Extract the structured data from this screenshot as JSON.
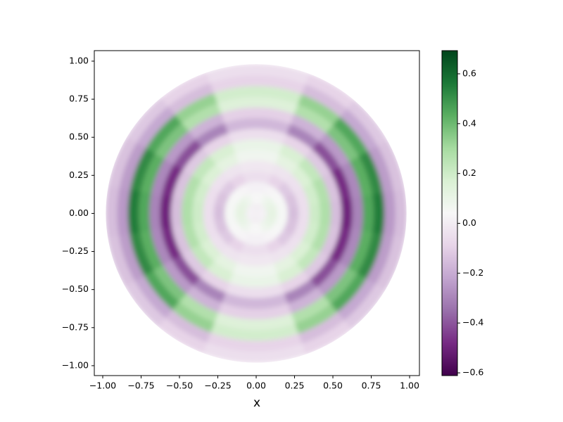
{
  "chart_data": {
    "type": "heatmap",
    "xlabel": "x",
    "xlim": [
      -1.055,
      1.064
    ],
    "ylim": [
      -1.065,
      1.069
    ],
    "xticks": [
      {
        "value": -1,
        "label": "−1.00"
      },
      {
        "value": -0.75,
        "label": "−0.75"
      },
      {
        "value": -0.5,
        "label": "−0.50"
      },
      {
        "value": -0.25,
        "label": "−0.25"
      },
      {
        "value": 0,
        "label": "0.00"
      },
      {
        "value": 0.25,
        "label": "0.25"
      },
      {
        "value": 0.5,
        "label": "0.50"
      },
      {
        "value": 0.75,
        "label": "0.75"
      },
      {
        "value": 1,
        "label": "1.00"
      }
    ],
    "yticks": [
      {
        "value": -1,
        "label": "−1.00"
      },
      {
        "value": -0.75,
        "label": "−0.75"
      },
      {
        "value": -0.5,
        "label": "−0.50"
      },
      {
        "value": -0.25,
        "label": "−0.25"
      },
      {
        "value": 0,
        "label": "0.00"
      },
      {
        "value": 0.25,
        "label": "0.25"
      },
      {
        "value": 0.5,
        "label": "0.50"
      },
      {
        "value": 0.75,
        "label": "0.75"
      },
      {
        "value": 1,
        "label": "1.00"
      }
    ],
    "clim": [
      -0.611,
      0.693
    ],
    "cticks": [
      {
        "value": -0.6,
        "label": "−0.6"
      },
      {
        "value": -0.4,
        "label": "−0.4"
      },
      {
        "value": -0.2,
        "label": "−0.2"
      },
      {
        "value": 0,
        "label": "0.0"
      },
      {
        "value": 0.2,
        "label": "0.2"
      },
      {
        "value": 0.4,
        "label": "0.4"
      },
      {
        "value": 0.6,
        "label": "0.6"
      }
    ],
    "colormap": [
      "#40004b",
      "#762a83",
      "#9970ab",
      "#c2a5cf",
      "#e7d4e8",
      "#f7f7f7",
      "#d9f0d3",
      "#a6dba0",
      "#5aae61",
      "#1b7837",
      "#00441b"
    ],
    "r": [
      0.035,
      0.105,
      0.175,
      0.245,
      0.315,
      0.385,
      0.455,
      0.525,
      0.595,
      0.665,
      0.735,
      0.805,
      0.875,
      0.945
    ],
    "theta": [
      0,
      20,
      40,
      60,
      80,
      100,
      120,
      140,
      160,
      180,
      200,
      220,
      240,
      260,
      280,
      300,
      320,
      340
    ],
    "values": [
      [
        0.02,
        0.02,
        0.02,
        0.01,
        0.01,
        0.01,
        0.01,
        0.02,
        0.02,
        0.02,
        0.02,
        0.02,
        0.01,
        0.01,
        0.01,
        0.01,
        0.02,
        0.02
      ],
      [
        0.12,
        0.11,
        0.1,
        0.07,
        0.04,
        0.04,
        0.07,
        0.1,
        0.11,
        0.12,
        0.11,
        0.1,
        0.07,
        0.04,
        0.04,
        0.07,
        0.1,
        0.11
      ],
      [
        0.05,
        0.05,
        0.04,
        0.03,
        0.02,
        0.02,
        0.03,
        0.04,
        0.05,
        0.05,
        0.05,
        0.04,
        0.03,
        0.02,
        0.02,
        0.03,
        0.04,
        0.05
      ],
      [
        -0.15,
        -0.14,
        -0.12,
        -0.09,
        -0.05,
        -0.05,
        -0.09,
        -0.12,
        -0.14,
        -0.15,
        -0.14,
        -0.12,
        -0.09,
        -0.05,
        -0.05,
        -0.09,
        -0.12,
        -0.14
      ],
      [
        -0.05,
        -0.05,
        -0.04,
        -0.03,
        -0.02,
        -0.02,
        -0.03,
        -0.04,
        -0.05,
        -0.05,
        -0.05,
        -0.04,
        -0.03,
        -0.02,
        -0.02,
        -0.03,
        -0.04,
        -0.05
      ],
      [
        0.2,
        0.19,
        0.16,
        0.12,
        0.07,
        0.07,
        0.12,
        0.16,
        0.19,
        0.2,
        0.19,
        0.16,
        0.12,
        0.07,
        0.07,
        0.12,
        0.16,
        0.19
      ],
      [
        0.28,
        0.27,
        0.23,
        0.17,
        0.1,
        0.1,
        0.17,
        0.23,
        0.27,
        0.28,
        0.27,
        0.23,
        0.17,
        0.1,
        0.1,
        0.17,
        0.23,
        0.27
      ],
      [
        -0.15,
        -0.14,
        -0.12,
        -0.09,
        -0.05,
        -0.05,
        -0.09,
        -0.12,
        -0.14,
        -0.15,
        -0.14,
        -0.12,
        -0.09,
        -0.05,
        -0.05,
        -0.09,
        -0.12,
        -0.14
      ],
      [
        -0.5,
        -0.48,
        -0.41,
        -0.3,
        -0.17,
        -0.17,
        -0.3,
        -0.41,
        -0.48,
        -0.5,
        -0.48,
        -0.41,
        -0.3,
        -0.17,
        -0.17,
        -0.3,
        -0.41,
        -0.48
      ],
      [
        -0.3,
        -0.29,
        -0.25,
        -0.18,
        -0.1,
        -0.1,
        -0.18,
        -0.25,
        -0.29,
        -0.3,
        -0.29,
        -0.25,
        -0.18,
        -0.1,
        -0.1,
        -0.18,
        -0.25,
        -0.29
      ],
      [
        0.45,
        0.43,
        0.37,
        0.27,
        0.15,
        0.15,
        0.27,
        0.37,
        0.43,
        0.45,
        0.43,
        0.37,
        0.27,
        0.15,
        0.15,
        0.27,
        0.37,
        0.43
      ],
      [
        0.55,
        0.52,
        0.45,
        0.33,
        0.19,
        0.19,
        0.33,
        0.45,
        0.52,
        0.55,
        0.52,
        0.45,
        0.33,
        0.19,
        0.19,
        0.33,
        0.45,
        0.52
      ],
      [
        -0.25,
        -0.24,
        -0.21,
        -0.15,
        -0.09,
        -0.09,
        -0.15,
        -0.21,
        -0.24,
        -0.25,
        -0.24,
        -0.21,
        -0.15,
        -0.09,
        -0.09,
        -0.15,
        -0.21,
        -0.24
      ],
      [
        -0.15,
        -0.14,
        -0.12,
        -0.09,
        -0.05,
        -0.05,
        -0.09,
        -0.12,
        -0.14,
        -0.15,
        -0.14,
        -0.12,
        -0.09,
        -0.05,
        -0.05,
        -0.09,
        -0.12,
        -0.14
      ]
    ]
  }
}
